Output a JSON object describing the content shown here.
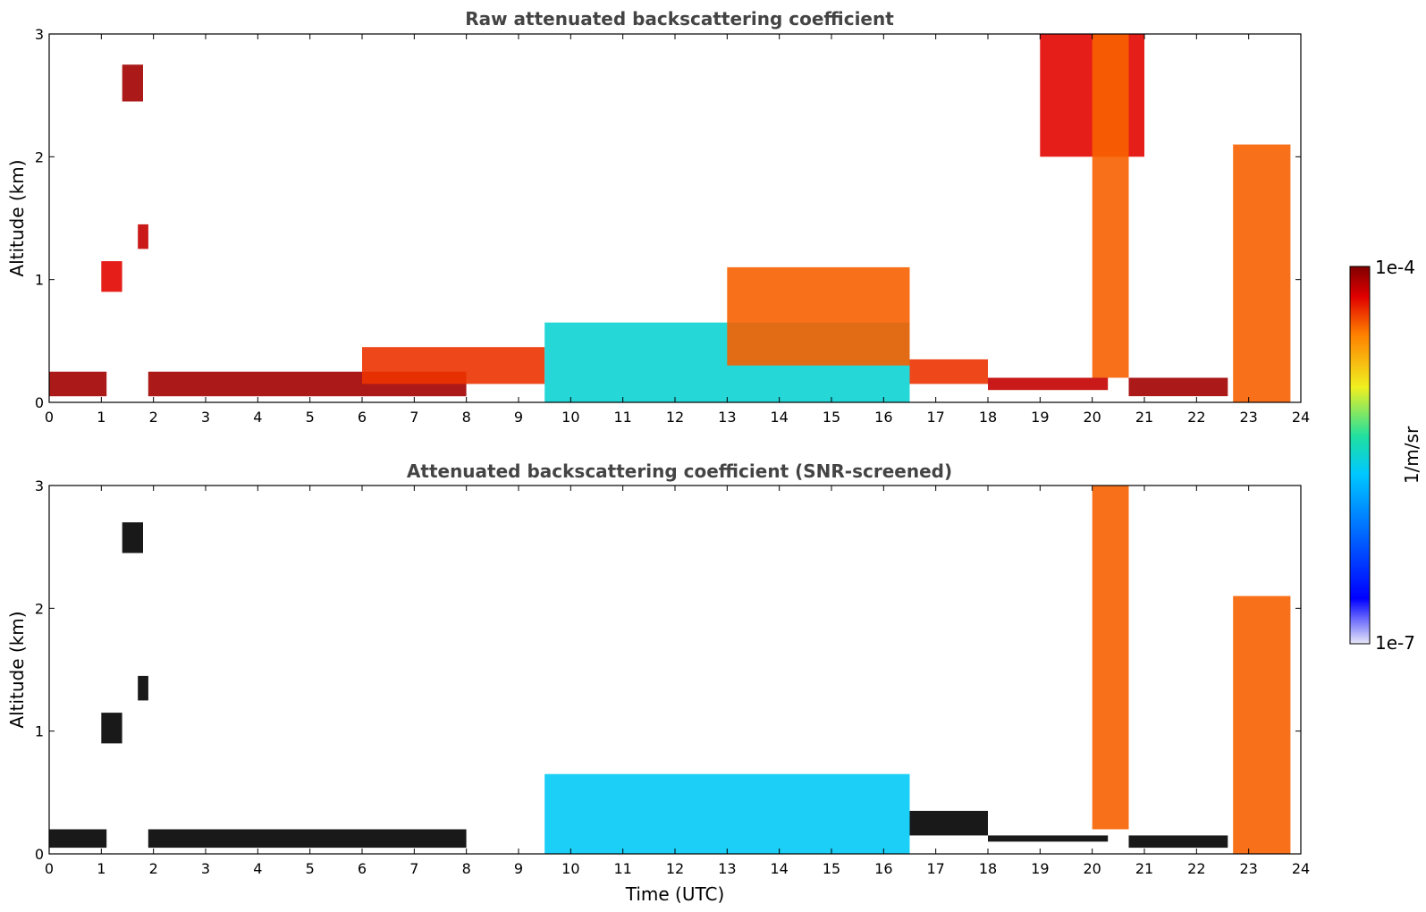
{
  "chart_data": [
    {
      "type": "heatmap",
      "title": "Raw attenuated backscattering coefficient",
      "xlabel": "",
      "ylabel": "Altitude (km)",
      "xlim": [
        0,
        24
      ],
      "ylim": [
        0,
        3
      ],
      "x_ticks": [
        "0",
        "1",
        "2",
        "3",
        "4",
        "5",
        "6",
        "7",
        "8",
        "9",
        "10",
        "11",
        "12",
        "13",
        "14",
        "15",
        "16",
        "17",
        "18",
        "19",
        "20",
        "21",
        "22",
        "23",
        "24"
      ],
      "y_ticks": [
        "0",
        "1",
        "2",
        "3"
      ],
      "features": [
        {
          "x": [
            0,
            1.1
          ],
          "y": [
            0.05,
            0.25
          ],
          "level": 0.95
        },
        {
          "x": [
            1.0,
            1.4
          ],
          "y": [
            0.9,
            1.15
          ],
          "level": 0.85
        },
        {
          "x": [
            1.4,
            1.8
          ],
          "y": [
            2.45,
            2.75
          ],
          "level": 0.95
        },
        {
          "x": [
            1.7,
            1.9
          ],
          "y": [
            1.25,
            1.45
          ],
          "level": 0.9
        },
        {
          "x": [
            1.9,
            8.0
          ],
          "y": [
            0.05,
            0.25
          ],
          "level": 0.95
        },
        {
          "x": [
            6.0,
            9.5
          ],
          "y": [
            0.15,
            0.45
          ],
          "level": 0.8
        },
        {
          "x": [
            9.5,
            16.5
          ],
          "y": [
            0.0,
            0.65
          ],
          "level": 0.35
        },
        {
          "x": [
            13.0,
            16.5
          ],
          "y": [
            0.3,
            1.1
          ],
          "level": 0.75
        },
        {
          "x": [
            16.5,
            18.0
          ],
          "y": [
            0.15,
            0.35
          ],
          "level": 0.8
        },
        {
          "x": [
            18.0,
            20.3
          ],
          "y": [
            0.1,
            0.2
          ],
          "level": 0.9
        },
        {
          "x": [
            19.0,
            21.0
          ],
          "y": [
            2.0,
            3.0
          ],
          "level": 0.85
        },
        {
          "x": [
            20.0,
            20.7
          ],
          "y": [
            0.2,
            3.0
          ],
          "level": 0.75
        },
        {
          "x": [
            20.7,
            22.6
          ],
          "y": [
            0.05,
            0.2
          ],
          "level": 0.95
        },
        {
          "x": [
            22.7,
            23.8
          ],
          "y": [
            0.0,
            2.1
          ],
          "level": 0.75
        }
      ]
    },
    {
      "type": "heatmap",
      "title": "Attenuated backscattering coefficient (SNR-screened)",
      "xlabel": "Time (UTC)",
      "ylabel": "Altitude (km)",
      "xlim": [
        0,
        24
      ],
      "ylim": [
        0,
        3
      ],
      "x_ticks": [
        "0",
        "1",
        "2",
        "3",
        "4",
        "5",
        "6",
        "7",
        "8",
        "9",
        "10",
        "11",
        "12",
        "13",
        "14",
        "15",
        "16",
        "17",
        "18",
        "19",
        "20",
        "21",
        "22",
        "23",
        "24"
      ],
      "y_ticks": [
        "0",
        "1",
        "2",
        "3"
      ],
      "features": [
        {
          "x": [
            0,
            1.1
          ],
          "y": [
            0.05,
            0.2
          ],
          "level": 1.0
        },
        {
          "x": [
            1.0,
            1.4
          ],
          "y": [
            0.9,
            1.15
          ],
          "level": 1.0
        },
        {
          "x": [
            1.4,
            1.8
          ],
          "y": [
            2.45,
            2.7
          ],
          "level": 1.0
        },
        {
          "x": [
            1.7,
            1.9
          ],
          "y": [
            1.25,
            1.45
          ],
          "level": 1.0
        },
        {
          "x": [
            1.9,
            8.0
          ],
          "y": [
            0.05,
            0.2
          ],
          "level": 1.0
        },
        {
          "x": [
            9.5,
            16.5
          ],
          "y": [
            0.0,
            0.65
          ],
          "level": 0.3
        },
        {
          "x": [
            16.5,
            18.0
          ],
          "y": [
            0.15,
            0.35
          ],
          "level": 1.0
        },
        {
          "x": [
            18.0,
            20.3
          ],
          "y": [
            0.1,
            0.15
          ],
          "level": 1.0
        },
        {
          "x": [
            20.0,
            20.7
          ],
          "y": [
            0.2,
            3.0
          ],
          "level": 0.75
        },
        {
          "x": [
            20.7,
            22.6
          ],
          "y": [
            0.05,
            0.15
          ],
          "level": 1.0
        },
        {
          "x": [
            22.7,
            23.8
          ],
          "y": [
            0.0,
            2.1
          ],
          "level": 0.75
        }
      ]
    }
  ],
  "colorbar": {
    "label": "1/m/sr",
    "max_label": "1e-4",
    "min_label": "1e-7",
    "stops": [
      "#e8e8f8",
      "#0000ff",
      "#00c8ff",
      "#20e0a0",
      "#f0f020",
      "#ff8000",
      "#e00000",
      "#800000"
    ]
  }
}
